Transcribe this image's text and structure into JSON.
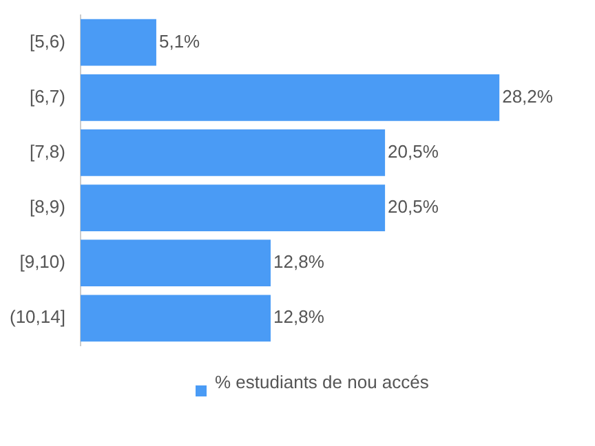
{
  "chart_data": {
    "type": "bar",
    "orientation": "horizontal",
    "categories": [
      "[5,6)",
      "[6,7)",
      "[7,8)",
      "[8,9)",
      "[9,10)",
      "(10,14]"
    ],
    "series": [
      {
        "name": "% estudiants de nou accés",
        "color": "#4a9bf5",
        "values": [
          5.1,
          28.2,
          20.5,
          20.5,
          12.8,
          12.8
        ],
        "value_labels": [
          "5,1%",
          "28,2%",
          "20,5%",
          "20,5%",
          "12,8%",
          "12,8%"
        ]
      }
    ],
    "tick_labels": "y",
    "legend": "bottom"
  }
}
